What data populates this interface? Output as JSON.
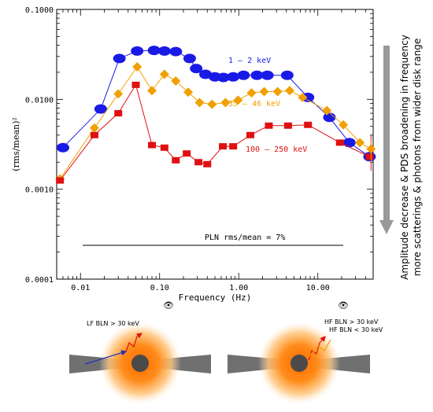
{
  "chart_data": {
    "type": "scatter",
    "xscale": "log",
    "yscale": "log",
    "xlabel": "Frequency (Hz)",
    "ylabel": "(rms/mean)²",
    "xlim": [
      0.005,
      50
    ],
    "ylim": [
      0.0001,
      0.1
    ],
    "xtick_labels": [
      "0.01",
      "0.10",
      "1.00",
      "10.00"
    ],
    "ytick_labels": [
      "0.0001",
      "0.0010",
      "0.0100",
      "0.1000"
    ],
    "series": [
      {
        "name": "1 – 2 keV",
        "color": "#1a1ae6",
        "marker": "circle",
        "points": [
          [
            0.006,
            0.0029
          ],
          [
            0.018,
            0.0078
          ],
          [
            0.031,
            0.0285
          ],
          [
            0.052,
            0.0345
          ],
          [
            0.085,
            0.035
          ],
          [
            0.115,
            0.0345
          ],
          [
            0.16,
            0.034
          ],
          [
            0.24,
            0.0285
          ],
          [
            0.29,
            0.022
          ],
          [
            0.38,
            0.019
          ],
          [
            0.5,
            0.0178
          ],
          [
            0.64,
            0.0175
          ],
          [
            0.85,
            0.0178
          ],
          [
            1.15,
            0.0185
          ],
          [
            1.7,
            0.0185
          ],
          [
            2.3,
            0.0185
          ],
          [
            4.1,
            0.0185
          ],
          [
            7.5,
            0.0105
          ],
          [
            14.0,
            0.0063
          ],
          [
            25.0,
            0.0033
          ],
          [
            45.0,
            0.0023
          ]
        ]
      },
      {
        "name": "35 – 46 keV",
        "color": "#f0a000",
        "marker": "diamond",
        "points": [
          [
            0.0055,
            0.0013
          ],
          [
            0.015,
            0.0048
          ],
          [
            0.03,
            0.0115
          ],
          [
            0.052,
            0.023
          ],
          [
            0.08,
            0.0125
          ],
          [
            0.115,
            0.019
          ],
          [
            0.16,
            0.016
          ],
          [
            0.23,
            0.012
          ],
          [
            0.32,
            0.0092
          ],
          [
            0.46,
            0.0088
          ],
          [
            0.68,
            0.0092
          ],
          [
            0.98,
            0.0098
          ],
          [
            1.45,
            0.0118
          ],
          [
            2.1,
            0.0122
          ],
          [
            3.1,
            0.0122
          ],
          [
            4.4,
            0.0125
          ],
          [
            6.4,
            0.0105
          ],
          [
            13.0,
            0.0075
          ],
          [
            21.0,
            0.0052
          ],
          [
            34.0,
            0.0033
          ],
          [
            47.0,
            0.0028
          ]
        ]
      },
      {
        "name": "100 – 250 keV",
        "color": "#e01010",
        "marker": "square",
        "points": [
          [
            0.0055,
            0.00125
          ],
          [
            0.015,
            0.004
          ],
          [
            0.03,
            0.007
          ],
          [
            0.05,
            0.0145
          ],
          [
            0.08,
            0.0031
          ],
          [
            0.115,
            0.0029
          ],
          [
            0.16,
            0.0021
          ],
          [
            0.22,
            0.0025
          ],
          [
            0.31,
            0.002
          ],
          [
            0.4,
            0.0019
          ],
          [
            0.63,
            0.003
          ],
          [
            0.85,
            0.003
          ],
          [
            1.4,
            0.004
          ],
          [
            2.4,
            0.0051
          ],
          [
            4.2,
            0.0051
          ],
          [
            7.5,
            0.0052
          ],
          [
            19.0,
            0.0033
          ],
          [
            45.0,
            0.0023
          ]
        ]
      }
    ],
    "annotations": [
      {
        "text": "1 – 2 keV",
        "color": "#1a1ae6"
      },
      {
        "text": "35 – 46 keV",
        "color": "#f0a000"
      },
      {
        "text": "100 – 250 keV",
        "color": "#e01010"
      },
      {
        "text": "PLN rms/mean = 7%",
        "color": "#000000"
      }
    ],
    "side_note": [
      "Amplitude decrease & PDS broadening in frequency",
      "more scatterings & photons from wider disk range"
    ],
    "arrow_color": "#999999"
  },
  "diagrams": [
    {
      "labels": [
        "LF BLN  > 30 keV"
      ]
    },
    {
      "labels": [
        "HF BLN  > 30 keV",
        "HF BLN < 30 keV"
      ]
    }
  ],
  "colors": {
    "disk": "#707070",
    "glow_inner": "#ff7a00",
    "glow_outer": "#ffd9a8",
    "hole": "#4a4a4a"
  }
}
